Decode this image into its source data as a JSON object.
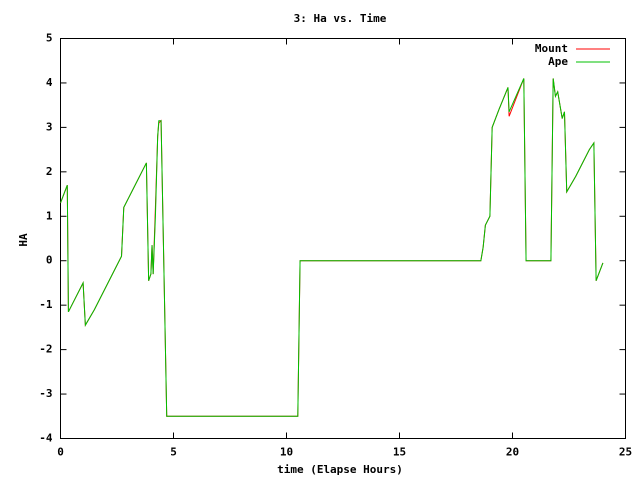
{
  "chart_data": {
    "type": "line",
    "title": "3: Ha vs. Time",
    "x_label": "time (Elapse Hours)",
    "y_label": "HA",
    "x": [
      0,
      0.3,
      0.35,
      1.0,
      1.1,
      1.5,
      2.7,
      2.8,
      3.2,
      3.8,
      3.9,
      4.0,
      4.05,
      4.1,
      4.2,
      4.3,
      4.35,
      4.45,
      4.7,
      10.5,
      10.6,
      18.6,
      18.7,
      18.8,
      19.0,
      19.1,
      19.4,
      19.8,
      19.85,
      20.5,
      20.6,
      21.7,
      21.8,
      21.9,
      22.0,
      22.2,
      22.3,
      22.4,
      22.8,
      23.4,
      23.6,
      23.7,
      24.0
    ],
    "series": [
      {
        "name": "Mount",
        "color": "#ff0000",
        "values": [
          1.3,
          1.7,
          -1.15,
          -0.5,
          -1.45,
          -1.1,
          0.1,
          1.2,
          1.6,
          2.2,
          -0.45,
          -0.3,
          0.35,
          -0.3,
          1.2,
          2.8,
          3.1,
          3.15,
          -3.5,
          -3.5,
          0,
          0,
          0.3,
          0.8,
          1.0,
          3.0,
          3.4,
          3.9,
          3.25,
          4.1,
          0,
          0,
          4.1,
          3.7,
          3.8,
          3.2,
          3.35,
          1.55,
          1.9,
          2.5,
          2.65,
          -0.45,
          -0.05
        ]
      },
      {
        "name": "Ape",
        "color": "#00c000",
        "values": [
          1.3,
          1.7,
          -1.15,
          -0.5,
          -1.45,
          -1.1,
          0.1,
          1.2,
          1.6,
          2.2,
          -0.45,
          -0.3,
          0.35,
          -0.3,
          1.0,
          2.8,
          3.15,
          3.15,
          -3.5,
          -3.5,
          0,
          0,
          0.3,
          0.8,
          1.0,
          3.0,
          3.4,
          3.9,
          3.35,
          4.1,
          0,
          0,
          4.1,
          3.7,
          3.8,
          3.2,
          3.35,
          1.55,
          1.9,
          2.5,
          2.65,
          -0.45,
          -0.05
        ]
      }
    ],
    "xlim": [
      0,
      25
    ],
    "xticks": [
      0,
      5,
      10,
      15,
      20,
      25
    ],
    "ylim": [
      -4,
      5
    ],
    "yticks": [
      -4,
      -3,
      -2,
      -1,
      0,
      1,
      2,
      3,
      4,
      5
    ],
    "legend": "top-right",
    "grid": false
  }
}
